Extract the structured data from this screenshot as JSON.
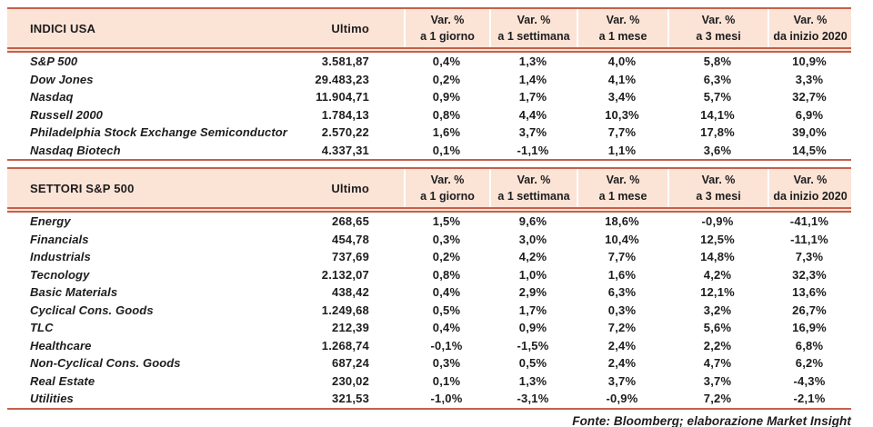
{
  "colors": {
    "border": "#c4614b",
    "header_fill": "#fbe3d5",
    "text": "#1d1d1f"
  },
  "footer": "Fonte: Bloomberg; elaborazione Market Insight",
  "tables": [
    {
      "title": "INDICI USA",
      "ultimo_label": "Ultimo",
      "var_headers": [
        {
          "l1": "Var. %",
          "l2": "a 1 giorno"
        },
        {
          "l1": "Var. %",
          "l2": "a 1 settimana"
        },
        {
          "l1": "Var. %",
          "l2": "a 1 mese"
        },
        {
          "l1": "Var. %",
          "l2": "a 3 mesi"
        },
        {
          "l1": "Var. %",
          "l2": "da inizio 2020"
        }
      ],
      "rows": [
        {
          "name": "S&P 500",
          "ultimo": "3.581,87",
          "vars": [
            "0,4%",
            "1,3%",
            "4,0%",
            "5,8%",
            "10,9%"
          ]
        },
        {
          "name": "Dow Jones",
          "ultimo": "29.483,23",
          "vars": [
            "0,2%",
            "1,4%",
            "4,1%",
            "6,3%",
            "3,3%"
          ]
        },
        {
          "name": "Nasdaq",
          "ultimo": "11.904,71",
          "vars": [
            "0,9%",
            "1,7%",
            "3,4%",
            "5,7%",
            "32,7%"
          ]
        },
        {
          "name": "Russell 2000",
          "ultimo": "1.784,13",
          "vars": [
            "0,8%",
            "4,4%",
            "10,3%",
            "14,1%",
            "6,9%"
          ]
        },
        {
          "name": "Philadelphia Stock Exchange Semiconductor",
          "ultimo": "2.570,22",
          "vars": [
            "1,6%",
            "3,7%",
            "7,7%",
            "17,8%",
            "39,0%"
          ]
        },
        {
          "name": "Nasdaq Biotech",
          "ultimo": "4.337,31",
          "vars": [
            "0,1%",
            "-1,1%",
            "1,1%",
            "3,6%",
            "14,5%"
          ]
        }
      ]
    },
    {
      "title": "SETTORI S&P 500",
      "ultimo_label": "Ultimo",
      "var_headers": [
        {
          "l1": "Var. %",
          "l2": "a 1 giorno"
        },
        {
          "l1": "Var. %",
          "l2": "a 1 settimana"
        },
        {
          "l1": "Var. %",
          "l2": "a 1 mese"
        },
        {
          "l1": "Var. %",
          "l2": "a 3 mesi"
        },
        {
          "l1": "Var. %",
          "l2": "da inizio 2020"
        }
      ],
      "rows": [
        {
          "name": "Energy",
          "ultimo": "268,65",
          "vars": [
            "1,5%",
            "9,6%",
            "18,6%",
            "-0,9%",
            "-41,1%"
          ]
        },
        {
          "name": "Financials",
          "ultimo": "454,78",
          "vars": [
            "0,3%",
            "3,0%",
            "10,4%",
            "12,5%",
            "-11,1%"
          ]
        },
        {
          "name": "Industrials",
          "ultimo": "737,69",
          "vars": [
            "0,2%",
            "4,2%",
            "7,7%",
            "14,8%",
            "7,3%"
          ]
        },
        {
          "name": "Tecnology",
          "ultimo": "2.132,07",
          "vars": [
            "0,8%",
            "1,0%",
            "1,6%",
            "4,2%",
            "32,3%"
          ]
        },
        {
          "name": "Basic Materials",
          "ultimo": "438,42",
          "vars": [
            "0,4%",
            "2,9%",
            "6,3%",
            "12,1%",
            "13,6%"
          ]
        },
        {
          "name": "Cyclical Cons. Goods",
          "ultimo": "1.249,68",
          "vars": [
            "0,5%",
            "1,7%",
            "0,3%",
            "3,2%",
            "26,7%"
          ]
        },
        {
          "name": "TLC",
          "ultimo": "212,39",
          "vars": [
            "0,4%",
            "0,9%",
            "7,2%",
            "5,6%",
            "16,9%"
          ]
        },
        {
          "name": "Healthcare",
          "ultimo": "1.268,74",
          "vars": [
            "-0,1%",
            "-1,5%",
            "2,4%",
            "2,2%",
            "6,8%"
          ]
        },
        {
          "name": "Non-Cyclical Cons. Goods",
          "ultimo": "687,24",
          "vars": [
            "0,3%",
            "0,5%",
            "2,4%",
            "4,7%",
            "6,2%"
          ]
        },
        {
          "name": "Real Estate",
          "ultimo": "230,02",
          "vars": [
            "0,1%",
            "1,3%",
            "3,7%",
            "3,7%",
            "-4,3%"
          ]
        },
        {
          "name": "Utilities",
          "ultimo": "321,53",
          "vars": [
            "-1,0%",
            "-3,1%",
            "-0,9%",
            "7,2%",
            "-2,1%"
          ]
        }
      ]
    }
  ]
}
